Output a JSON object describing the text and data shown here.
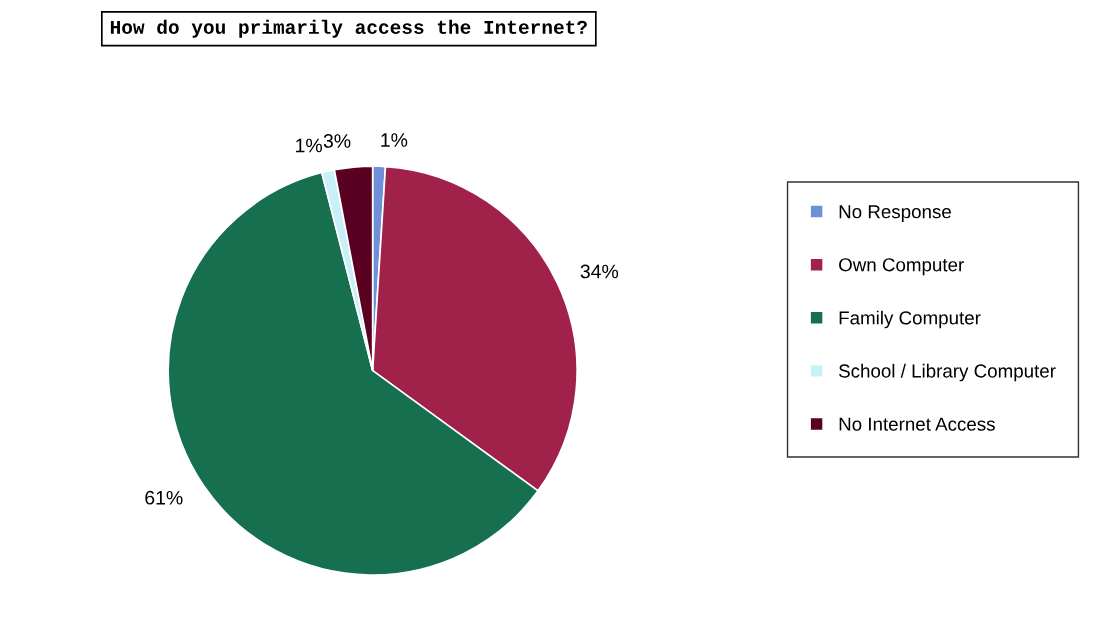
{
  "chart_data": {
    "type": "pie",
    "title": "How do you primarily access the Internet?",
    "categories": [
      "No Response",
      "Own Computer",
      "Family Computer",
      "School / Library Computer",
      "No Internet Access"
    ],
    "values": [
      1,
      34,
      61,
      1,
      3
    ],
    "colors": [
      "#6f8fd8",
      "#a0224a",
      "#167050",
      "#c8f0f8",
      "#5a0020"
    ],
    "value_labels": [
      "1%",
      "34%",
      "61%",
      "1%",
      "3%"
    ],
    "legend": "right"
  }
}
